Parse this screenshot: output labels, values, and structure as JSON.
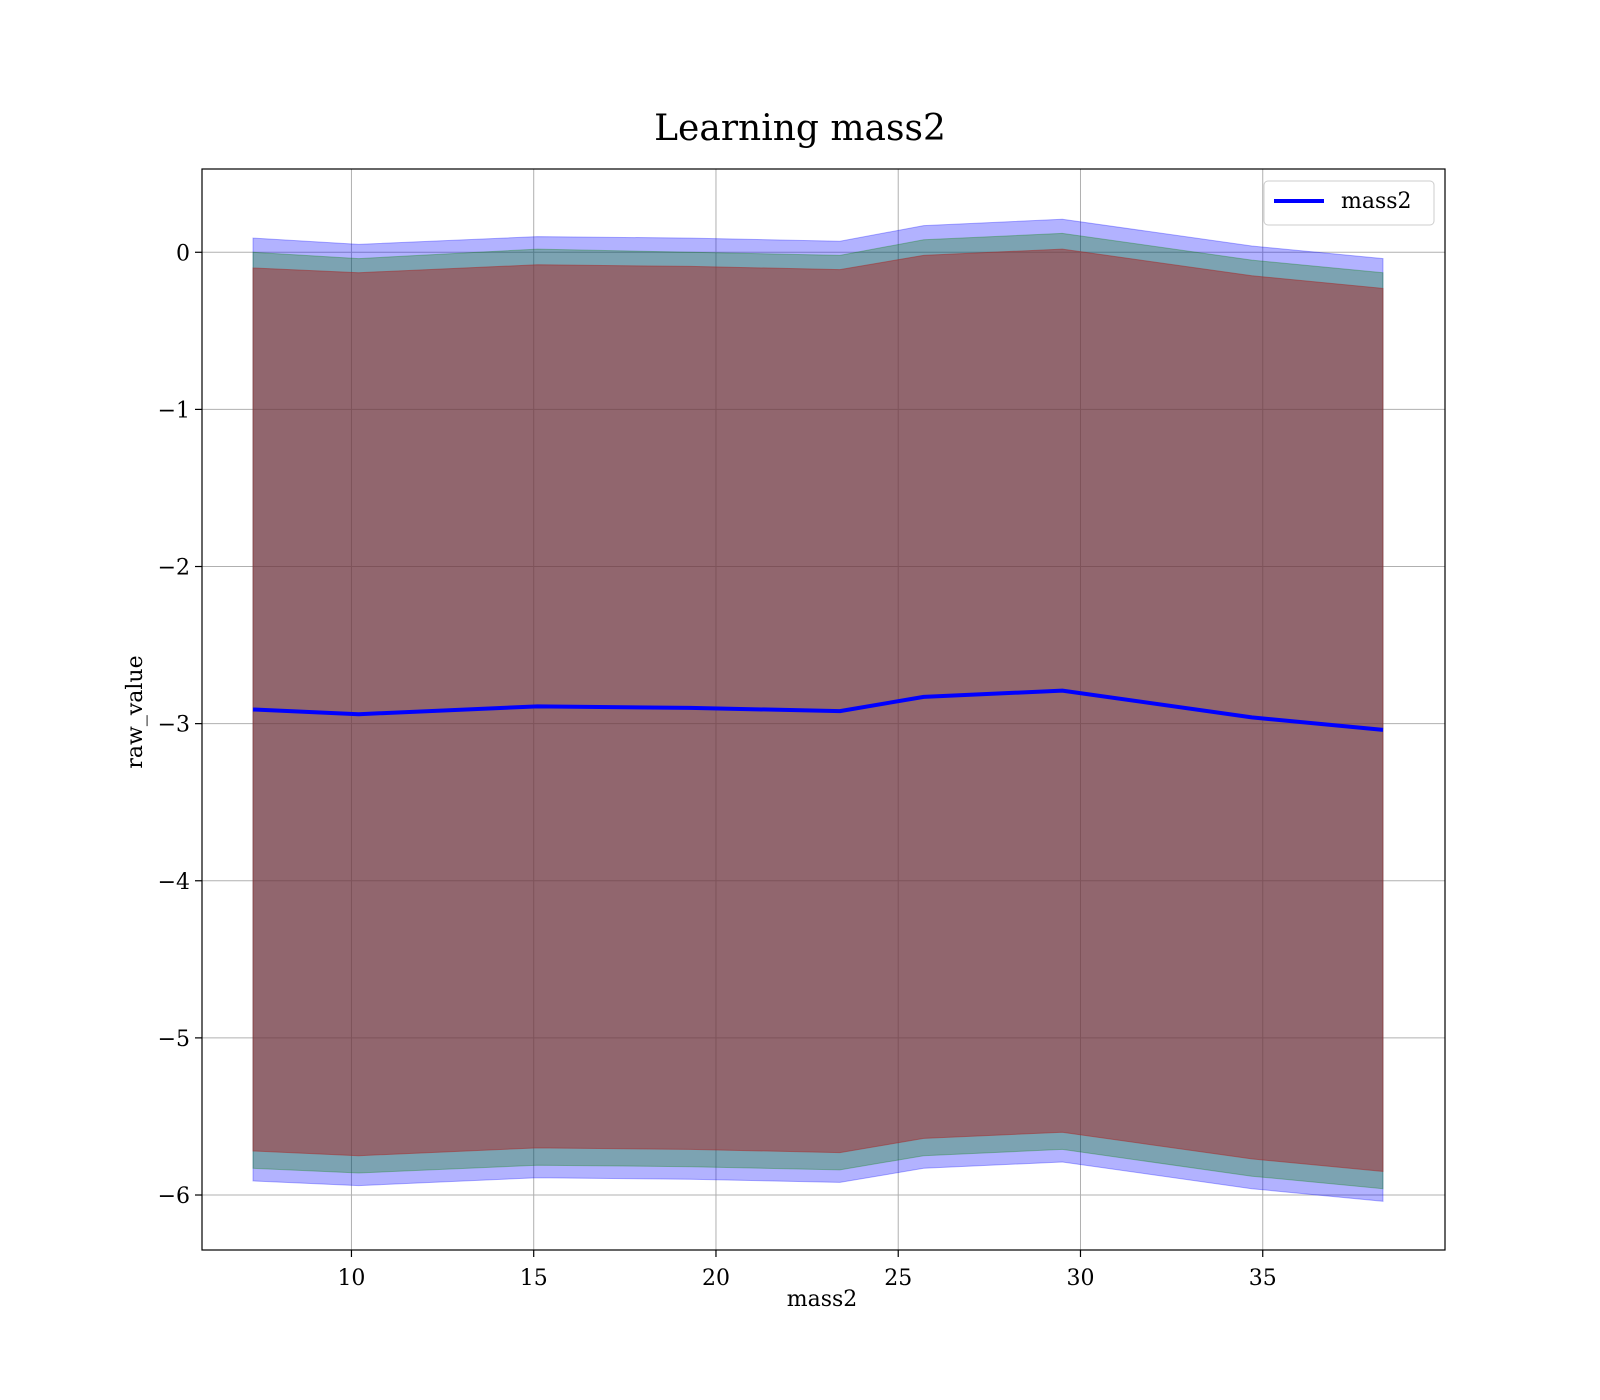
{
  "chart_data": {
    "type": "area",
    "title": "Learning mass2",
    "xlabel": "mass2",
    "ylabel": "raw_value",
    "xlim": [
      5.9,
      40.0
    ],
    "ylim": [
      -6.35,
      0.53
    ],
    "xticks": [
      10,
      15,
      20,
      25,
      30,
      35
    ],
    "xtick_labels": [
      "10",
      "15",
      "20",
      "25",
      "30",
      "35"
    ],
    "yticks": [
      0,
      -1,
      -2,
      -3,
      -4,
      -5,
      -6
    ],
    "ytick_labels": [
      "0",
      "−1",
      "−2",
      "−3",
      "−4",
      "−5",
      "−6"
    ],
    "grid": true,
    "legend_position": "top-right",
    "x": [
      7.3,
      10.2,
      15.1,
      19.3,
      23.4,
      25.7,
      29.5,
      34.7,
      38.3
    ],
    "series": [
      {
        "name": "mass2",
        "type": "line",
        "color": "#0000ff",
        "values": [
          -2.91,
          -2.94,
          -2.89,
          -2.9,
          -2.92,
          -2.83,
          -2.79,
          -2.96,
          -3.04
        ]
      }
    ],
    "bands": [
      {
        "color": "#0000ff",
        "opacity": 0.3,
        "upper": [
          0.09,
          0.05,
          0.1,
          0.09,
          0.07,
          0.17,
          0.21,
          0.04,
          -0.04
        ],
        "lower": [
          -5.91,
          -5.94,
          -5.89,
          -5.9,
          -5.92,
          -5.83,
          -5.79,
          -5.96,
          -6.04
        ]
      },
      {
        "color": "#008000",
        "opacity": 0.3,
        "upper": [
          0.0,
          -0.04,
          0.02,
          0.0,
          -0.02,
          0.08,
          0.12,
          -0.05,
          -0.13
        ],
        "lower": [
          -5.83,
          -5.86,
          -5.81,
          -5.82,
          -5.84,
          -5.75,
          -5.71,
          -5.88,
          -5.96
        ]
      },
      {
        "color": "#a52a2a",
        "opacity": 0.5,
        "upper": [
          -0.1,
          -0.13,
          -0.08,
          -0.09,
          -0.11,
          -0.02,
          0.02,
          -0.15,
          -0.23
        ],
        "lower": [
          -5.72,
          -5.75,
          -5.7,
          -5.71,
          -5.73,
          -5.64,
          -5.6,
          -5.77,
          -5.85
        ]
      }
    ]
  }
}
